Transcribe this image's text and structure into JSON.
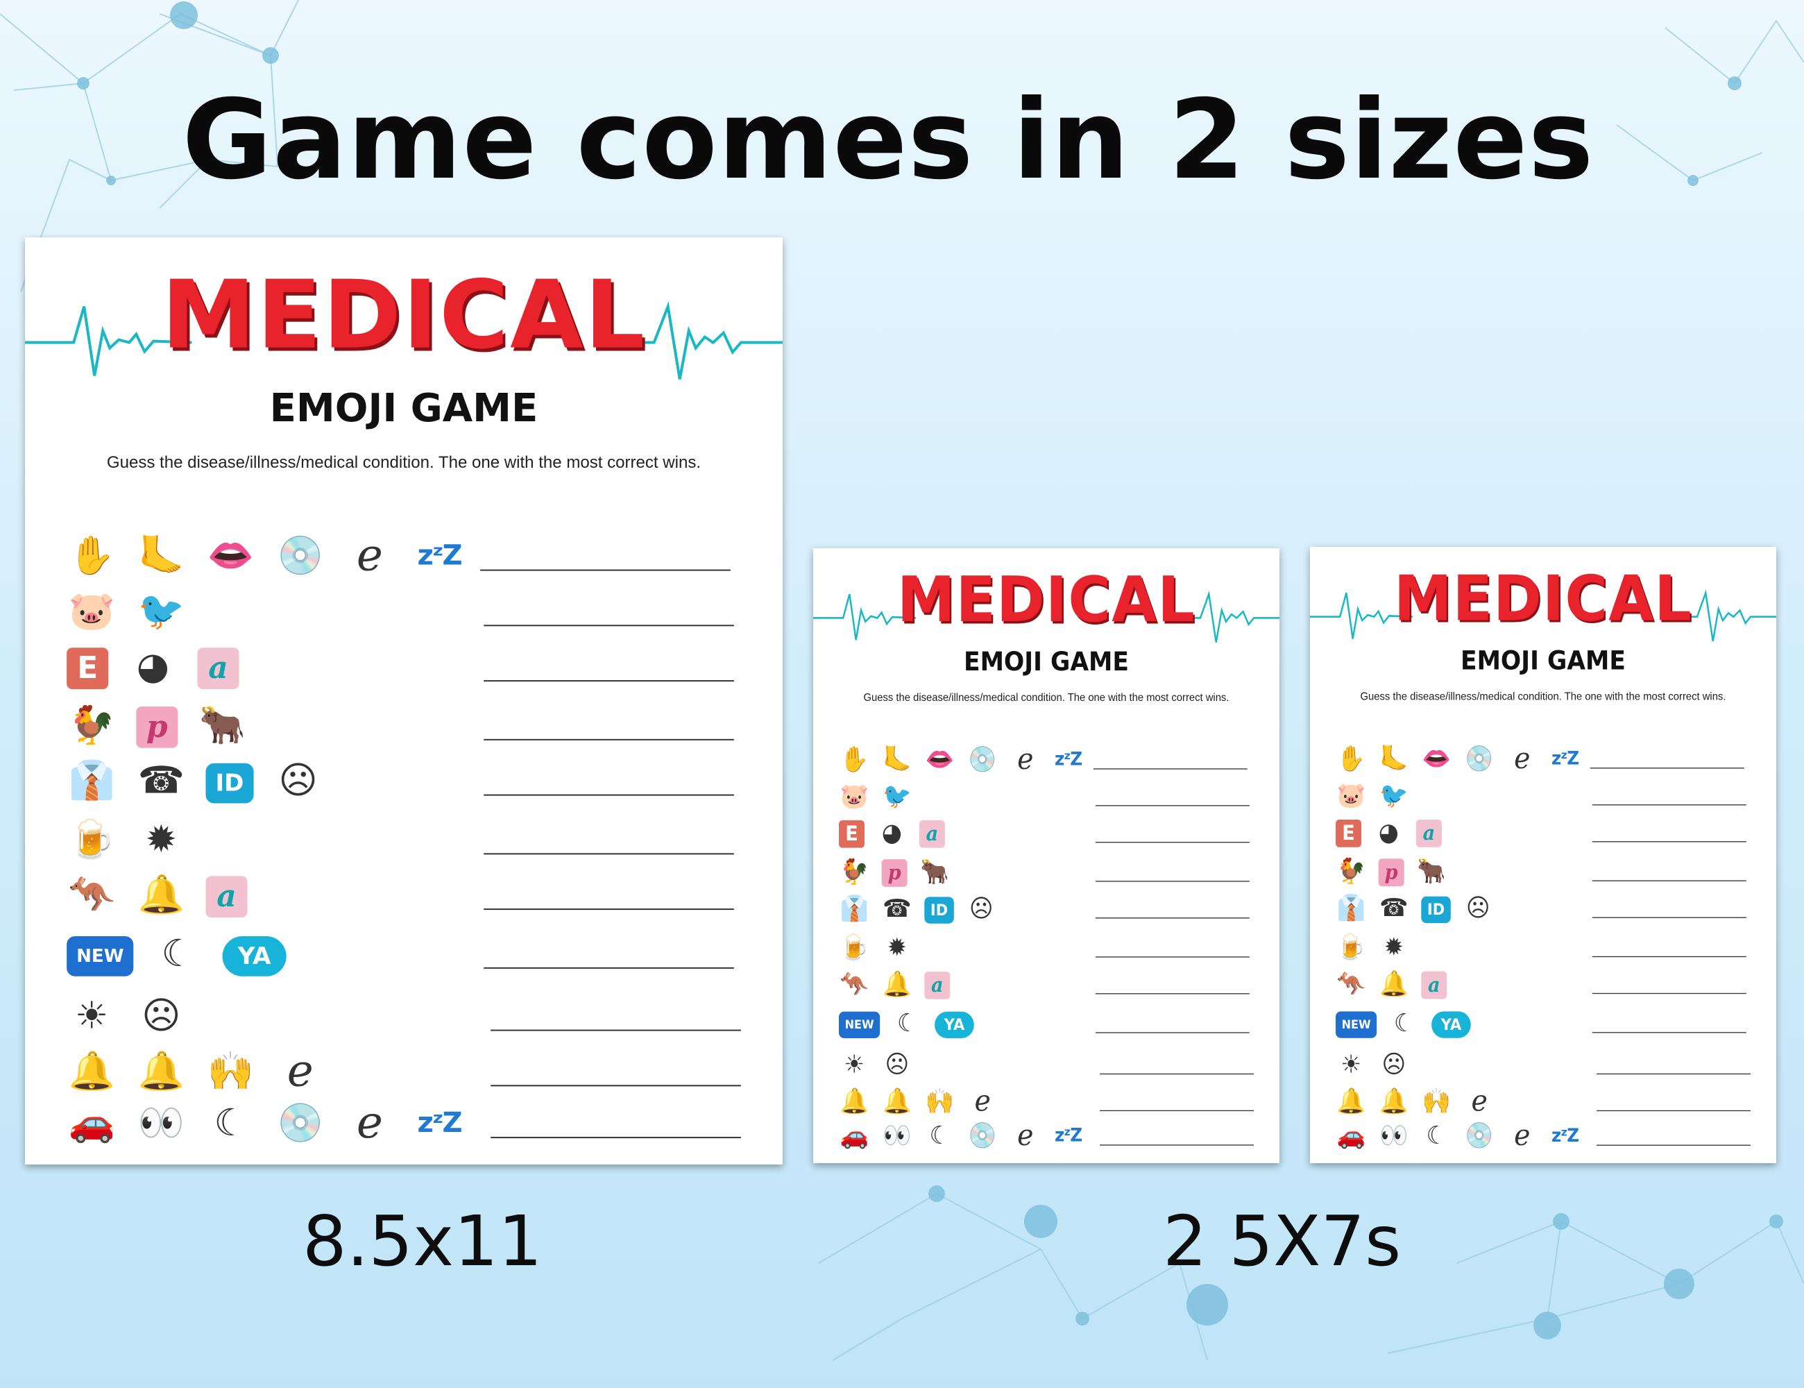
{
  "headline": "Game comes in 2 sizes",
  "sheet": {
    "title": "MEDICAL",
    "subtitle": "EMOJI GAME",
    "instructions": "Guess the disease/illness/medical condition.  The one with the most correct wins.",
    "rows": [
      [
        "raised-hand",
        "foot",
        "lips",
        "disc",
        "e",
        "zzz"
      ],
      [
        "pig",
        "bird"
      ],
      [
        "e-tile",
        "beach-ball",
        "a-tile"
      ],
      [
        "rooster",
        "p-tile",
        "bull"
      ],
      [
        "tie",
        "telephone",
        "id-badge",
        "sick-face"
      ],
      [
        "beer-bottle",
        "virus"
      ],
      [
        "kangaroo",
        "bell",
        "a-tile"
      ],
      [
        "new-badge",
        "crescent-moon",
        "ya-badge"
      ],
      [
        "sun",
        "sick-face"
      ],
      [
        "bell",
        "bell",
        "high-five",
        "e"
      ],
      [
        "car",
        "eyes",
        "crescent-moon",
        "disc",
        "e",
        "zzz"
      ]
    ]
  },
  "glyphs": {
    "raised-hand": "✋",
    "foot": "🦶",
    "lips": "👄",
    "disc": "💿",
    "e": "e",
    "zzz": "zᶻZ",
    "pig": "🐷",
    "bird": "🐦",
    "e-tile": "E",
    "beach-ball": "◕",
    "a-tile": "a",
    "rooster": "🐓",
    "p-tile": "p",
    "bull": "🐂",
    "tie": "👔",
    "telephone": "☎",
    "id-badge": "ID",
    "sick-face": "☹",
    "beer-bottle": "🍺",
    "virus": "✹",
    "kangaroo": "🦘",
    "bell": "🔔",
    "new-badge": "NEW",
    "crescent-moon": "☾",
    "ya-badge": "YA",
    "sun": "☀",
    "high-five": "🙌",
    "car": "🚗",
    "eyes": "👀"
  },
  "captions": {
    "large": "8.5x11",
    "small": "2 5X7s"
  },
  "colors": {
    "title_red": "#e8232c",
    "title_shadow": "#8b1116",
    "ekg_teal": "#19b8c4"
  }
}
